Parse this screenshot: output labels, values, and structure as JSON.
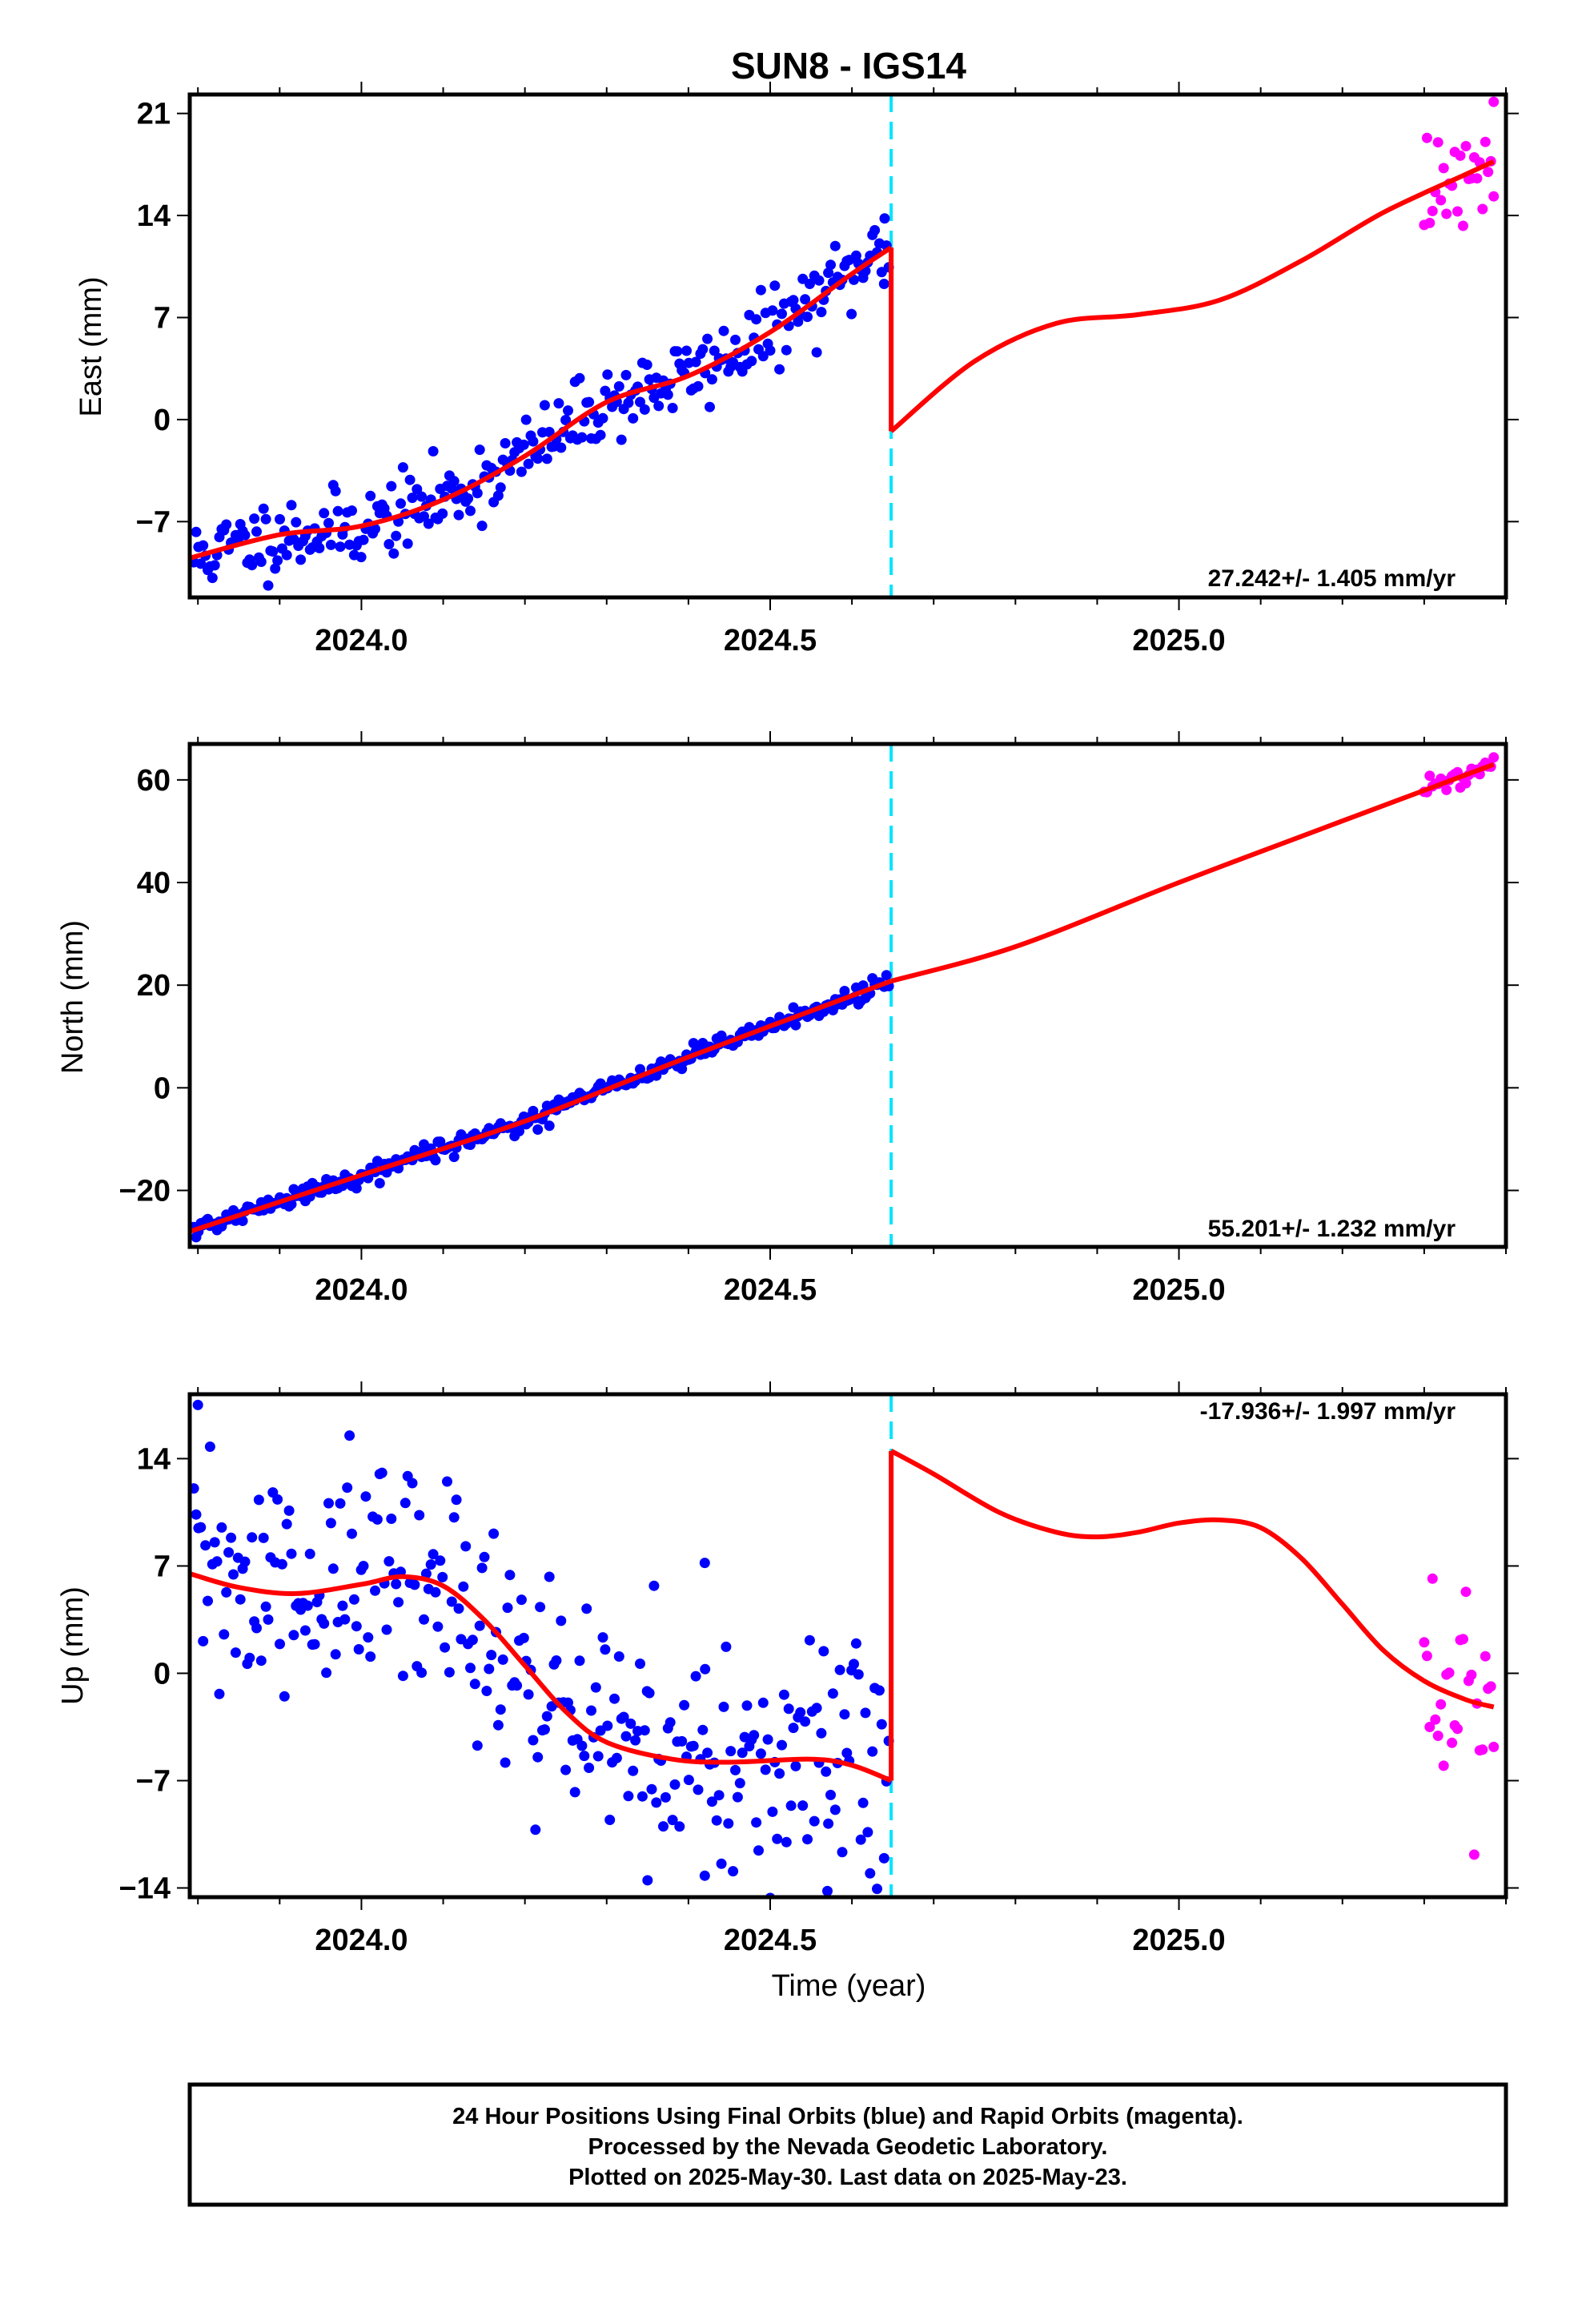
{
  "title": "SUN8 - IGS14",
  "xlabel": "Time (year)",
  "caption": {
    "lines": [
      "24 Hour Positions Using Final Orbits (blue) and Rapid Orbits (magenta).",
      "Processed by the Nevada Geodetic Laboratory.",
      "Plotted on 2025-May-30. Last data on 2025-May-23."
    ]
  },
  "colors": {
    "final_orbits": "#0000ff",
    "rapid_orbits": "#ff00ff",
    "model_fit": "#ff0000",
    "event_line": "#00e5ff",
    "frame": "#000000"
  },
  "chart_data": [
    {
      "type": "scatter",
      "component": "east",
      "ylabel": "East (mm)",
      "rate_text": "27.242+/- 1.405 mm/yr",
      "xlim": [
        2023.79,
        2025.4
      ],
      "ylim": [
        -12.2,
        22.3
      ],
      "xticks": [
        2024.0,
        2024.5,
        2025.0
      ],
      "xtick_labels": [
        "2024.0",
        "2024.5",
        "2025.0"
      ],
      "yticks": [
        21,
        14,
        7,
        0,
        -7
      ],
      "ytick_labels": [
        "21",
        "14",
        "7",
        "0",
        "−7"
      ],
      "event_x": 2024.648,
      "final_orbits": {
        "t_start": 2023.795,
        "t_end": 2024.645,
        "n": 300,
        "noise": 1.3,
        "seed": 11
      },
      "rapid_orbits": {
        "t_start": 2025.3,
        "t_end": 2025.385,
        "n": 26,
        "noise": 1.9,
        "seed": 12
      },
      "fit_pre": [
        [
          2023.79,
          -9.5
        ],
        [
          2023.9,
          -7.9
        ],
        [
          2024.0,
          -7.3
        ],
        [
          2024.1,
          -5.5
        ],
        [
          2024.2,
          -2.5
        ],
        [
          2024.3,
          1.2
        ],
        [
          2024.4,
          3.0
        ],
        [
          2024.5,
          6.0
        ],
        [
          2024.6,
          10.0
        ],
        [
          2024.648,
          11.8
        ]
      ],
      "fit_post": [
        [
          2024.648,
          -0.8
        ],
        [
          2024.75,
          4.0
        ],
        [
          2024.85,
          6.6
        ],
        [
          2024.95,
          7.2
        ],
        [
          2025.05,
          8.2
        ],
        [
          2025.15,
          10.9
        ],
        [
          2025.25,
          14.2
        ],
        [
          2025.35,
          16.8
        ],
        [
          2025.385,
          17.7
        ]
      ],
      "outliers": [
        [
          2025.385,
          21.8
        ],
        [
          2024.64,
          13.8
        ]
      ]
    },
    {
      "type": "scatter",
      "component": "north",
      "ylabel": "North (mm)",
      "rate_text": "55.201+/- 1.232 mm/yr",
      "xlim": [
        2023.79,
        2025.4
      ],
      "ylim": [
        -31,
        67
      ],
      "xticks": [
        2024.0,
        2024.5,
        2025.0
      ],
      "xtick_labels": [
        "2024.0",
        "2024.5",
        "2025.0"
      ],
      "yticks": [
        60,
        40,
        20,
        0,
        -20
      ],
      "ytick_labels": [
        "60",
        "40",
        "20",
        "0",
        "−20"
      ],
      "event_x": 2024.648,
      "final_orbits": {
        "t_start": 2023.795,
        "t_end": 2024.645,
        "n": 300,
        "noise": 0.9,
        "seed": 21
      },
      "rapid_orbits": {
        "t_start": 2025.3,
        "t_end": 2025.385,
        "n": 26,
        "noise": 1.1,
        "seed": 22
      },
      "fit_pre": [
        [
          2023.79,
          -28.0
        ],
        [
          2024.0,
          -17.0
        ],
        [
          2024.2,
          -6.5
        ],
        [
          2024.4,
          6.0
        ],
        [
          2024.648,
          20.8
        ]
      ],
      "fit_post": [
        [
          2024.648,
          20.8
        ],
        [
          2024.8,
          27.5
        ],
        [
          2025.0,
          40.0
        ],
        [
          2025.2,
          52.0
        ],
        [
          2025.385,
          63.0
        ]
      ],
      "outliers": []
    },
    {
      "type": "scatter",
      "component": "up",
      "ylabel": "Up (mm)",
      "rate_text": "-17.936+/- 1.997 mm/yr",
      "xlim": [
        2023.79,
        2025.4
      ],
      "ylim": [
        -14.6,
        18.2
      ],
      "xticks": [
        2024.0,
        2024.5,
        2025.0
      ],
      "xtick_labels": [
        "2024.0",
        "2024.5",
        "2025.0"
      ],
      "yticks": [
        14,
        7,
        0,
        -7,
        -14
      ],
      "ytick_labels": [
        "14",
        "7",
        "0",
        "−7",
        "−14"
      ],
      "event_x": 2024.648,
      "final_orbits": {
        "t_start": 2023.795,
        "t_end": 2024.645,
        "n": 300,
        "noise": 4.0,
        "seed": 31
      },
      "rapid_orbits": {
        "t_start": 2025.3,
        "t_end": 2025.385,
        "n": 26,
        "noise": 3.6,
        "seed": 32
      },
      "fit_pre": [
        [
          2023.79,
          6.5
        ],
        [
          2023.85,
          5.6
        ],
        [
          2023.92,
          5.2
        ],
        [
          2024.0,
          5.8
        ],
        [
          2024.05,
          6.3
        ],
        [
          2024.1,
          5.7
        ],
        [
          2024.15,
          3.5
        ],
        [
          2024.2,
          0.5
        ],
        [
          2024.25,
          -2.5
        ],
        [
          2024.3,
          -4.5
        ],
        [
          2024.38,
          -5.6
        ],
        [
          2024.45,
          -5.8
        ],
        [
          2024.55,
          -5.6
        ],
        [
          2024.6,
          -6.0
        ],
        [
          2024.648,
          -7.0
        ]
      ],
      "fit_post": [
        [
          2024.648,
          14.5
        ],
        [
          2024.7,
          13.0
        ],
        [
          2024.78,
          10.5
        ],
        [
          2024.85,
          9.2
        ],
        [
          2024.9,
          8.9
        ],
        [
          2024.95,
          9.2
        ],
        [
          2025.0,
          9.8
        ],
        [
          2025.05,
          10.0
        ],
        [
          2025.1,
          9.5
        ],
        [
          2025.15,
          7.5
        ],
        [
          2025.2,
          4.5
        ],
        [
          2025.25,
          1.5
        ],
        [
          2025.3,
          -0.5
        ],
        [
          2025.35,
          -1.7
        ],
        [
          2025.385,
          -2.2
        ]
      ],
      "outliers": [
        [
          2023.8,
          17.5
        ],
        [
          2024.42,
          7.2
        ],
        [
          2024.35,
          -13.5
        ],
        [
          2024.42,
          -13.2
        ],
        [
          2024.57,
          -14.2
        ]
      ]
    }
  ]
}
